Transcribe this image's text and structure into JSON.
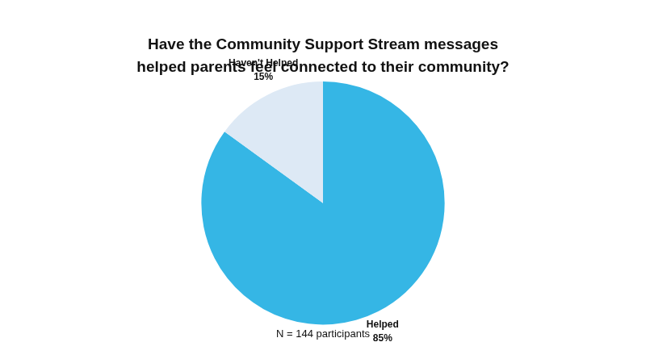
{
  "chart_data": {
    "type": "pie",
    "title": [
      "Have the Community Support Stream messages",
      "helped parents feel connected to their community?"
    ],
    "categories": [
      "Helped",
      "Haven't Helped"
    ],
    "values": [
      85,
      15
    ],
    "value_labels": [
      "85%",
      "15%"
    ],
    "colors": [
      "#35b6e5",
      "#dde9f5"
    ],
    "data_labels": true,
    "annotations": [
      "N = 144 participants"
    ]
  }
}
